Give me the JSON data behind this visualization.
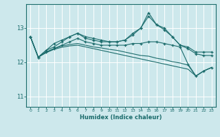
{
  "xlabel": "Humidex (Indice chaleur)",
  "ylabel": "",
  "background_color": "#cde8ec",
  "grid_color": "#ffffff",
  "line_color": "#1a6b6b",
  "xlim": [
    -0.5,
    23.5
  ],
  "ylim": [
    10.7,
    13.7
  ],
  "yticks": [
    11,
    12,
    13
  ],
  "xticks": [
    0,
    1,
    2,
    3,
    4,
    5,
    6,
    7,
    8,
    9,
    10,
    11,
    12,
    13,
    14,
    15,
    16,
    17,
    18,
    19,
    20,
    21,
    22,
    23
  ],
  "series": [
    {
      "x": [
        0,
        1,
        2,
        3,
        4,
        5,
        6,
        7,
        8,
        9,
        10,
        11,
        12,
        13,
        14,
        15,
        16,
        17,
        18,
        19,
        20,
        21,
        22,
        23
      ],
      "y": [
        12.75,
        12.15,
        12.35,
        12.55,
        12.65,
        12.75,
        12.85,
        12.7,
        12.65,
        12.6,
        12.6,
        12.6,
        12.65,
        12.85,
        13.0,
        13.45,
        13.1,
        13.0,
        12.75,
        12.5,
        12.45,
        12.3,
        12.3,
        12.3
      ],
      "marker": "+",
      "has_marker": true
    },
    {
      "x": [
        0,
        1,
        2,
        3,
        4,
        5,
        6,
        7,
        8,
        9,
        10,
        11,
        12,
        13,
        14,
        15,
        16,
        17,
        18,
        19,
        20,
        21,
        22,
        23
      ],
      "y": [
        12.75,
        12.15,
        12.35,
        12.45,
        12.6,
        12.75,
        12.85,
        12.75,
        12.7,
        12.65,
        12.6,
        12.6,
        12.65,
        12.8,
        13.0,
        13.35,
        13.1,
        12.95,
        12.75,
        12.5,
        12.4,
        12.25,
        12.2,
        12.2
      ],
      "marker": "+",
      "has_marker": true
    },
    {
      "x": [
        0,
        1,
        2,
        3,
        4,
        5,
        6,
        7,
        8,
        9,
        10,
        11,
        12,
        13,
        14,
        15,
        16,
        17,
        18,
        19,
        20,
        21,
        22,
        23
      ],
      "y": [
        12.75,
        12.15,
        12.3,
        12.4,
        12.5,
        12.6,
        12.7,
        12.6,
        12.55,
        12.5,
        12.5,
        12.5,
        12.5,
        12.55,
        12.55,
        12.6,
        12.6,
        12.55,
        12.5,
        12.45,
        11.95,
        11.6,
        11.75,
        11.85
      ],
      "marker": "+",
      "has_marker": true
    },
    {
      "x": [
        0,
        1,
        2,
        3,
        4,
        5,
        6,
        7,
        8,
        9,
        10,
        11,
        12,
        13,
        14,
        15,
        16,
        17,
        18,
        19,
        20,
        21,
        22,
        23
      ],
      "y": [
        12.75,
        12.15,
        12.3,
        12.4,
        12.48,
        12.52,
        12.55,
        12.5,
        12.45,
        12.42,
        12.38,
        12.35,
        12.3,
        12.25,
        12.2,
        12.18,
        12.12,
        12.08,
        12.02,
        11.98,
        11.92,
        11.6,
        11.75,
        11.85
      ],
      "marker": null,
      "has_marker": false
    },
    {
      "x": [
        0,
        1,
        2,
        3,
        4,
        5,
        6,
        7,
        8,
        9,
        10,
        11,
        12,
        13,
        14,
        15,
        16,
        17,
        18,
        19,
        20,
        21,
        22,
        23
      ],
      "y": [
        12.75,
        12.15,
        12.28,
        12.38,
        12.44,
        12.48,
        12.5,
        12.45,
        12.4,
        12.35,
        12.3,
        12.25,
        12.2,
        12.15,
        12.1,
        12.05,
        12.0,
        11.95,
        11.9,
        11.85,
        11.8,
        11.6,
        11.75,
        11.85
      ],
      "marker": null,
      "has_marker": false
    }
  ]
}
